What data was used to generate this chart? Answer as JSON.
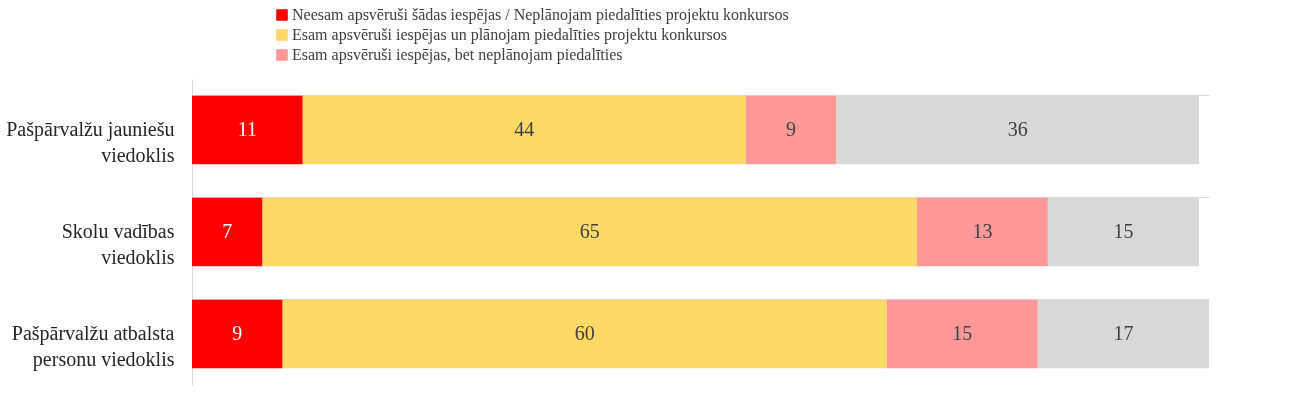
{
  "chart_data": {
    "type": "bar",
    "orientation": "horizontal",
    "stacked": true,
    "data_labels": true,
    "tick_labels": "y",
    "grid": "y",
    "legend": "top",
    "categories": [
      "Pašpārvalžu jauniešu viedoklis",
      "Skolu vadības viedoklis",
      "Pašpārvalžu atbalsta personu viedoklis"
    ],
    "xlim": [
      0,
      101
    ],
    "series": [
      {
        "name": "Neesam apsvēruši šādas iespējas / Neplānojam piedalīties projektu konkursos",
        "color": "#ff0000",
        "values": [
          11,
          7,
          9
        ]
      },
      {
        "name": "Esam apsvēruši iespējas un plānojam piedalīties projektu konkursos",
        "color": "#ffd966",
        "values": [
          44,
          65,
          60
        ]
      },
      {
        "name": "Esam apsvēruši iespējas, bet neplānojam piedalīties",
        "color": "#ff9999",
        "values": [
          9,
          13,
          15
        ]
      },
      {
        "color": "#d9d9d9",
        "values": [
          36,
          15,
          17
        ]
      }
    ]
  }
}
